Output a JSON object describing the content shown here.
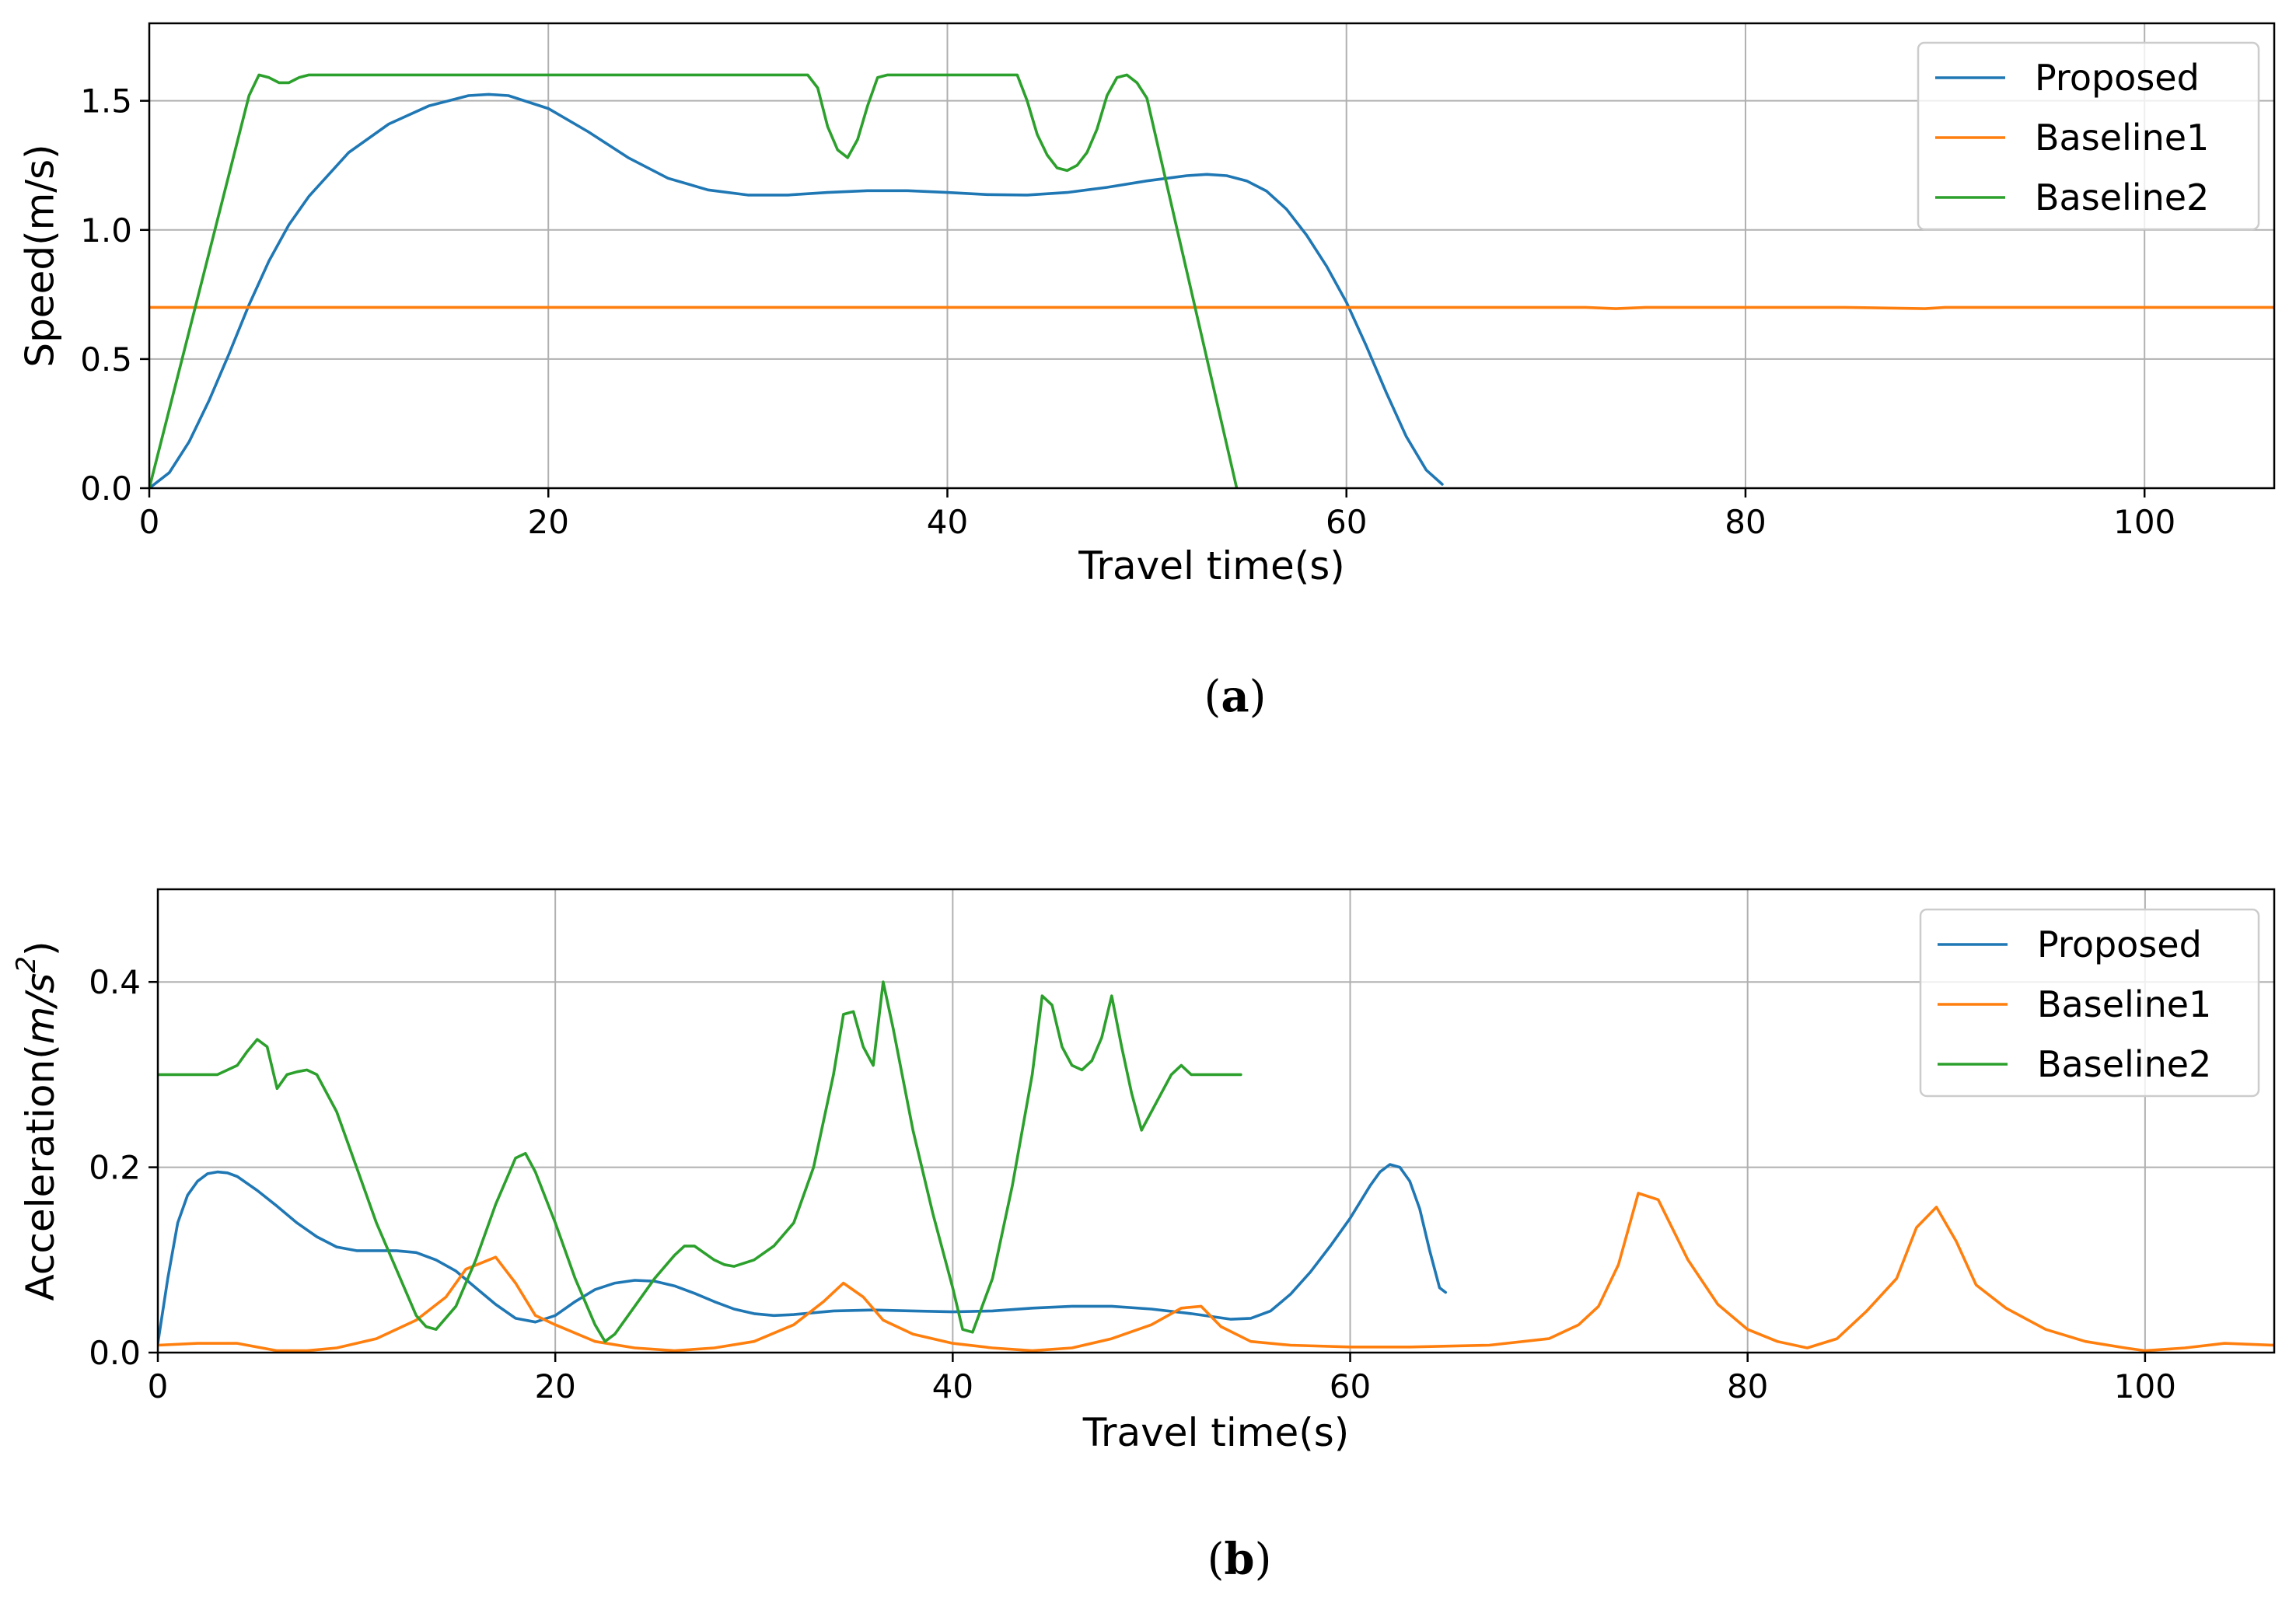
{
  "colors": {
    "proposed": "#1f77b4",
    "baseline1": "#ff7f0e",
    "baseline2": "#2ca02c",
    "grid": "#b0b0b0"
  },
  "chart_data": [
    {
      "type": "line",
      "caption": "a",
      "xlabel": "Travel time(s)",
      "ylabel": "Speed(m/s)",
      "xlim": [
        0,
        106.5
      ],
      "ylim": [
        0,
        1.8
      ],
      "xticks": [
        0,
        20,
        40,
        60,
        80,
        100
      ],
      "xtick_labels": [
        "0",
        "20",
        "40",
        "60",
        "80",
        "100"
      ],
      "yticks": [
        0,
        0.5,
        1.0,
        1.5
      ],
      "ytick_labels": [
        "0.0",
        "0.5",
        "1.0",
        "1.5"
      ],
      "grid": true,
      "legend_position": "top-right",
      "series": [
        {
          "name": "Proposed",
          "color": "#1f77b4",
          "x": [
            0,
            1,
            2,
            3,
            4,
            5,
            6,
            7,
            8,
            10,
            12,
            14,
            16,
            17,
            18,
            20,
            22,
            24,
            26,
            28,
            30,
            32,
            34,
            36,
            38,
            40,
            42,
            44,
            46,
            48,
            50,
            52,
            53,
            54,
            55,
            56,
            57,
            58,
            59,
            60,
            61,
            62,
            63,
            64,
            64.8
          ],
          "y": [
            0,
            0.06,
            0.18,
            0.34,
            0.52,
            0.71,
            0.88,
            1.02,
            1.13,
            1.3,
            1.41,
            1.48,
            1.52,
            1.525,
            1.52,
            1.47,
            1.38,
            1.28,
            1.2,
            1.155,
            1.135,
            1.135,
            1.145,
            1.152,
            1.152,
            1.145,
            1.137,
            1.135,
            1.145,
            1.165,
            1.19,
            1.21,
            1.215,
            1.21,
            1.19,
            1.15,
            1.08,
            0.98,
            0.86,
            0.72,
            0.55,
            0.37,
            0.2,
            0.07,
            0.015
          ]
        },
        {
          "name": "Baseline1",
          "color": "#ff7f0e",
          "x": [
            0,
            15,
            20,
            30,
            50,
            60,
            72,
            73.5,
            75,
            85,
            89,
            90,
            95,
            106.5
          ],
          "y": [
            0.7,
            0.7,
            0.7,
            0.7,
            0.7,
            0.7,
            0.7,
            0.695,
            0.7,
            0.7,
            0.695,
            0.7,
            0.7,
            0.7
          ]
        },
        {
          "name": "Baseline2",
          "color": "#2ca02c",
          "x": [
            0,
            5,
            5.5,
            6,
            6.5,
            7,
            7.5,
            8,
            10,
            20,
            33,
            33.5,
            34,
            34.5,
            35,
            35.5,
            36,
            36.5,
            37,
            38,
            40,
            43.5,
            44,
            44.5,
            45,
            45.5,
            46,
            46.5,
            47,
            47.5,
            48,
            48.5,
            49,
            49.5,
            50,
            54.5
          ],
          "y": [
            0,
            1.52,
            1.6,
            1.59,
            1.57,
            1.57,
            1.59,
            1.6,
            1.6,
            1.6,
            1.6,
            1.55,
            1.4,
            1.31,
            1.28,
            1.35,
            1.48,
            1.59,
            1.6,
            1.6,
            1.6,
            1.6,
            1.5,
            1.37,
            1.29,
            1.24,
            1.23,
            1.25,
            1.3,
            1.39,
            1.52,
            1.59,
            1.6,
            1.57,
            1.51,
            0
          ]
        }
      ]
    },
    {
      "type": "line",
      "caption": "b",
      "xlabel": "Travel time(s)",
      "ylabel_base": "Acceleration(",
      "ylabel_unit": "m/s",
      "ylabel_sup": "2",
      "ylabel_close": ")",
      "xlim": [
        0,
        106.5
      ],
      "ylim": [
        0,
        0.5
      ],
      "xticks": [
        0,
        20,
        40,
        60,
        80,
        100
      ],
      "xtick_labels": [
        "0",
        "20",
        "40",
        "60",
        "80",
        "100"
      ],
      "yticks": [
        0,
        0.2,
        0.4
      ],
      "ytick_labels": [
        "0.0",
        "0.2",
        "0.4"
      ],
      "grid": true,
      "legend_position": "top-right",
      "series": [
        {
          "name": "Proposed",
          "color": "#1f77b4",
          "x": [
            0,
            0.5,
            1,
            1.5,
            2,
            2.5,
            3,
            3.5,
            4,
            5,
            6,
            7,
            8,
            9,
            10,
            11,
            12,
            13,
            14,
            15,
            16,
            17,
            18,
            19,
            20,
            21,
            22,
            23,
            24,
            25,
            26,
            27,
            28,
            29,
            30,
            31,
            32,
            34,
            36,
            38,
            40,
            42,
            44,
            46,
            48,
            50,
            52,
            54,
            55,
            56,
            57,
            58,
            59,
            60,
            61,
            61.5,
            62,
            62.5,
            63,
            63.5,
            64,
            64.5,
            64.8
          ],
          "y": [
            0.01,
            0.08,
            0.14,
            0.17,
            0.185,
            0.193,
            0.195,
            0.194,
            0.19,
            0.175,
            0.158,
            0.14,
            0.125,
            0.114,
            0.11,
            0.11,
            0.11,
            0.108,
            0.1,
            0.088,
            0.07,
            0.052,
            0.037,
            0.033,
            0.04,
            0.055,
            0.068,
            0.075,
            0.078,
            0.077,
            0.072,
            0.064,
            0.055,
            0.047,
            0.042,
            0.04,
            0.041,
            0.045,
            0.046,
            0.045,
            0.044,
            0.045,
            0.048,
            0.05,
            0.05,
            0.047,
            0.042,
            0.036,
            0.037,
            0.045,
            0.063,
            0.087,
            0.115,
            0.145,
            0.18,
            0.195,
            0.203,
            0.2,
            0.185,
            0.155,
            0.11,
            0.07,
            0.065
          ]
        },
        {
          "name": "Baseline1",
          "color": "#ff7f0e",
          "x": [
            0,
            2,
            4,
            6,
            7.5,
            9,
            11,
            13,
            14.5,
            15.5,
            17,
            18,
            19,
            20,
            22,
            24,
            26,
            28,
            30,
            32,
            33.5,
            34.5,
            35.5,
            36.5,
            38,
            40,
            42,
            44,
            46,
            48,
            50,
            51.5,
            52.5,
            53.5,
            55,
            57,
            60,
            63,
            67,
            70,
            71.5,
            72.5,
            73.5,
            74.5,
            75.5,
            77,
            78.5,
            80,
            81.5,
            83,
            84.5,
            86,
            87.5,
            88.5,
            89.5,
            90.5,
            91.5,
            93,
            95,
            97,
            99,
            100,
            102,
            104,
            106.5
          ],
          "y": [
            0.008,
            0.01,
            0.01,
            0.002,
            0.002,
            0.005,
            0.015,
            0.035,
            0.06,
            0.09,
            0.103,
            0.075,
            0.04,
            0.03,
            0.012,
            0.005,
            0.002,
            0.005,
            0.012,
            0.03,
            0.055,
            0.075,
            0.06,
            0.035,
            0.02,
            0.01,
            0.005,
            0.002,
            0.005,
            0.015,
            0.03,
            0.048,
            0.05,
            0.028,
            0.012,
            0.008,
            0.006,
            0.006,
            0.008,
            0.015,
            0.03,
            0.05,
            0.095,
            0.172,
            0.165,
            0.1,
            0.052,
            0.025,
            0.012,
            0.005,
            0.015,
            0.045,
            0.08,
            0.135,
            0.157,
            0.12,
            0.073,
            0.048,
            0.025,
            0.012,
            0.005,
            0.002,
            0.005,
            0.01,
            0.008
          ]
        },
        {
          "name": "Baseline2",
          "color": "#2ca02c",
          "x": [
            0,
            1,
            2,
            3,
            4,
            4.5,
            5,
            5.5,
            6,
            6.5,
            7,
            7.5,
            8,
            9,
            10,
            11,
            12,
            13,
            13.5,
            14,
            15,
            16,
            17,
            18,
            18.5,
            19,
            20,
            21,
            22,
            22.5,
            23,
            24,
            25,
            26,
            26.5,
            27,
            28,
            28.5,
            29,
            30,
            31,
            32,
            33,
            34,
            34.5,
            35,
            35.5,
            36,
            36.5,
            37,
            38,
            39,
            40,
            40.5,
            41,
            42,
            43,
            44,
            44.5,
            45,
            45.5,
            46,
            46.5,
            47,
            47.5,
            48,
            48.5,
            49,
            49.5,
            50,
            50.5,
            51,
            51.5,
            52,
            53,
            54.5
          ],
          "y": [
            0.3,
            0.3,
            0.3,
            0.3,
            0.31,
            0.325,
            0.338,
            0.33,
            0.285,
            0.3,
            0.303,
            0.305,
            0.3,
            0.26,
            0.2,
            0.14,
            0.09,
            0.04,
            0.028,
            0.025,
            0.05,
            0.1,
            0.16,
            0.21,
            0.215,
            0.195,
            0.14,
            0.08,
            0.03,
            0.012,
            0.02,
            0.05,
            0.08,
            0.105,
            0.115,
            0.115,
            0.1,
            0.095,
            0.093,
            0.1,
            0.115,
            0.14,
            0.2,
            0.3,
            0.365,
            0.368,
            0.33,
            0.31,
            0.4,
            0.35,
            0.24,
            0.15,
            0.07,
            0.025,
            0.022,
            0.08,
            0.18,
            0.3,
            0.385,
            0.375,
            0.33,
            0.31,
            0.305,
            0.315,
            0.34,
            0.385,
            0.33,
            0.28,
            0.24,
            0.26,
            0.28,
            0.3,
            0.31,
            0.3,
            0.3,
            0.3
          ]
        }
      ]
    }
  ]
}
